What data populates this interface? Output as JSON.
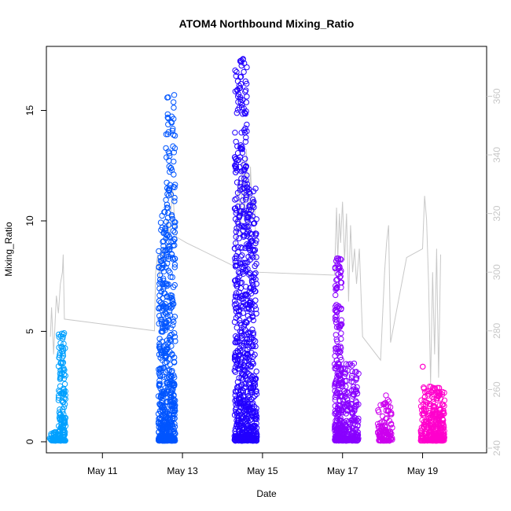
{
  "chart_data": {
    "type": "scatter",
    "title": "ATOM4 Northbound Mixing_Ratio",
    "xlabel": "Date",
    "ylabel": "Mixing_Ratio",
    "x_ticks": [
      {
        "value": 1.0,
        "label": "May 11"
      },
      {
        "value": 3.0,
        "label": "May 13"
      },
      {
        "value": 5.0,
        "label": "May 15"
      },
      {
        "value": 7.0,
        "label": "May 17"
      },
      {
        "value": 9.0,
        "label": "May 19"
      }
    ],
    "xlim": [
      -0.4,
      10.6
    ],
    "ylim": [
      -0.5,
      17.9
    ],
    "y_ticks": [
      0,
      5,
      10,
      15
    ],
    "y2_ticks": [
      240,
      260,
      280,
      300,
      320,
      340,
      360
    ],
    "y2lim": [
      238.4,
      377
    ],
    "grid": false,
    "series": [
      {
        "color": "#00A0FF",
        "clusters": [
          {
            "x0": -0.32,
            "x1": -0.1,
            "ymax": 0.4,
            "n": 40
          },
          {
            "x0": -0.1,
            "x1": 0.08,
            "ymax": 4.9,
            "n": 160
          }
        ]
      },
      {
        "color": "#0055FF",
        "clusters": [
          {
            "x0": 2.4,
            "x1": 2.58,
            "ymax": 10.4,
            "n": 260
          },
          {
            "x0": 2.58,
            "x1": 2.82,
            "ymax": 15.7,
            "n": 360
          }
        ]
      },
      {
        "color": "#2200FF",
        "clusters": [
          {
            "x0": 4.3,
            "x1": 4.62,
            "ymax": 17.3,
            "n": 520
          },
          {
            "x0": 4.62,
            "x1": 4.86,
            "ymax": 11.5,
            "n": 300
          }
        ]
      },
      {
        "color": "#8800FF",
        "clusters": [
          {
            "x0": 6.8,
            "x1": 6.98,
            "ymax": 8.3,
            "n": 240
          },
          {
            "x0": 6.98,
            "x1": 7.4,
            "ymax": 3.5,
            "n": 220
          }
        ]
      },
      {
        "color": "#CC00EE",
        "clusters": [
          {
            "x0": 7.88,
            "x1": 8.05,
            "ymax": 1.7,
            "n": 50
          },
          {
            "x0": 8.05,
            "x1": 8.25,
            "ymax": 2.1,
            "n": 60
          }
        ]
      },
      {
        "color": "#FF00CC",
        "clusters": [
          {
            "x0": 8.95,
            "x1": 9.25,
            "ymax": 2.5,
            "n": 130
          },
          {
            "x0": 9.25,
            "x1": 9.55,
            "ymax": 2.4,
            "n": 180
          },
          {
            "x0": 9.0,
            "x1": 9.05,
            "ymax": 3.4,
            "n": 2
          }
        ]
      }
    ],
    "line_series": {
      "color": "#c8c8c8",
      "axis": "right",
      "points": [
        [
          -0.3,
          278
        ],
        [
          -0.27,
          288
        ],
        [
          -0.22,
          272
        ],
        [
          -0.15,
          292
        ],
        [
          -0.1,
          286
        ],
        [
          -0.05,
          296
        ],
        [
          0.0,
          300
        ],
        [
          0.02,
          306
        ],
        [
          0.05,
          284
        ],
        [
          2.3,
          280
        ],
        [
          2.33,
          300
        ],
        [
          2.38,
          306
        ],
        [
          2.42,
          298
        ],
        [
          2.48,
          308
        ],
        [
          2.55,
          304
        ],
        [
          2.62,
          318
        ],
        [
          2.68,
          312
        ],
        [
          2.75,
          330
        ],
        [
          2.8,
          318
        ],
        [
          2.85,
          312
        ],
        [
          3.1,
          310
        ],
        [
          4.3,
          302
        ],
        [
          4.4,
          332
        ],
        [
          4.45,
          312
        ],
        [
          4.5,
          338
        ],
        [
          4.55,
          318
        ],
        [
          4.6,
          342
        ],
        [
          4.65,
          310
        ],
        [
          4.7,
          336
        ],
        [
          4.75,
          318
        ],
        [
          4.8,
          326
        ],
        [
          4.85,
          300
        ],
        [
          6.8,
          299
        ],
        [
          6.85,
          322
        ],
        [
          6.88,
          304
        ],
        [
          6.92,
          320
        ],
        [
          6.95,
          310
        ],
        [
          7.0,
          324
        ],
        [
          7.05,
          304
        ],
        [
          7.1,
          320
        ],
        [
          7.15,
          290
        ],
        [
          7.2,
          316
        ],
        [
          7.25,
          300
        ],
        [
          7.3,
          308
        ],
        [
          7.35,
          296
        ],
        [
          7.42,
          308
        ],
        [
          7.5,
          278
        ],
        [
          7.95,
          270
        ],
        [
          8.05,
          300
        ],
        [
          8.1,
          310
        ],
        [
          8.15,
          316
        ],
        [
          8.2,
          276
        ],
        [
          8.6,
          305
        ],
        [
          9.0,
          308
        ],
        [
          9.05,
          326
        ],
        [
          9.1,
          318
        ],
        [
          9.15,
          296
        ],
        [
          9.2,
          262
        ],
        [
          9.25,
          300
        ],
        [
          9.3,
          272
        ],
        [
          9.35,
          308
        ],
        [
          9.4,
          264
        ],
        [
          9.45,
          306
        ]
      ]
    }
  }
}
